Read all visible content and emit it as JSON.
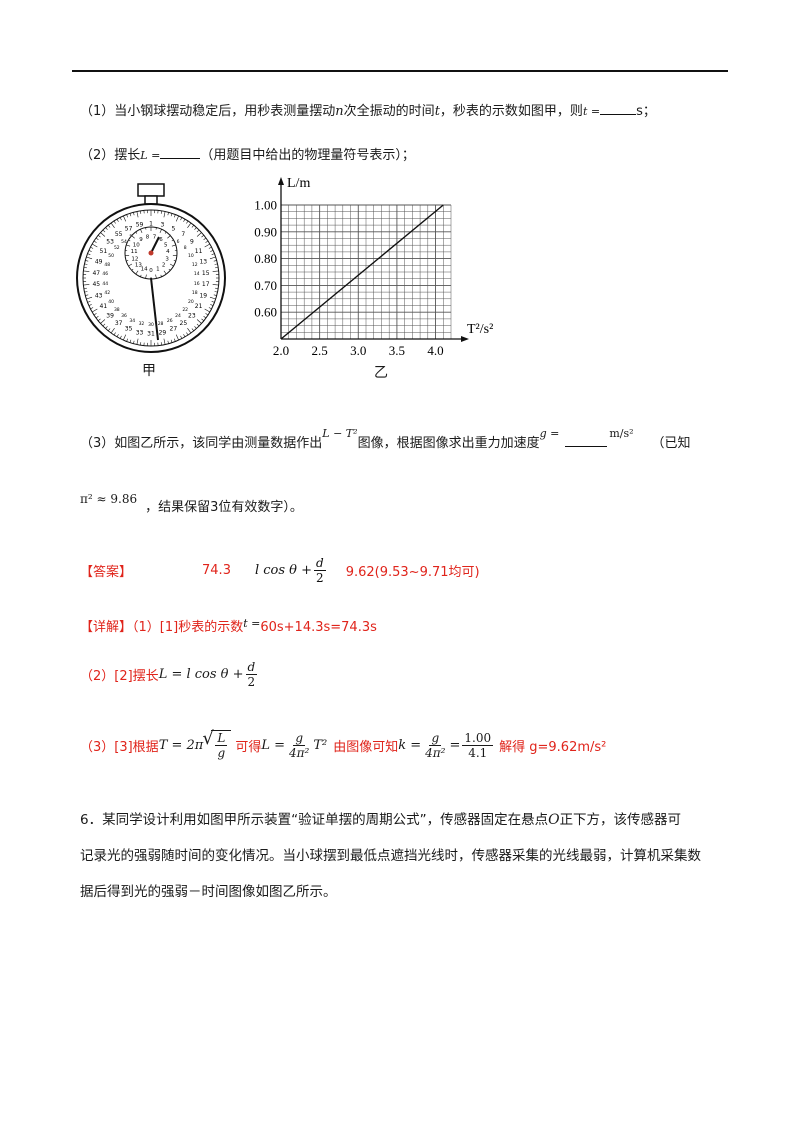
{
  "q1": {
    "num": "（1）",
    "text_a": "当小钢球摆动稳定后，用秒表测量摆动",
    "n": "n",
    "text_b": "次全振动的时间",
    "t": "t",
    "text_c": "，秒表的示数如图甲，则",
    "t_eq": "t =",
    "unit": "s；"
  },
  "q2": {
    "num": "（2）",
    "text_a": "摆长",
    "L_eq": "L =",
    "text_b": "（用题目中给出的物理量符号表示）；"
  },
  "figures": {
    "stopwatch_caption": "甲",
    "graph_caption": "乙",
    "stopwatch_outer_numbers": [
      "31",
      "33",
      "35",
      "37",
      "39",
      "41",
      "43",
      "45",
      "47",
      "49",
      "51",
      "53",
      "55",
      "57",
      "59",
      "1",
      "3",
      "5",
      "7",
      "9",
      "11",
      "13",
      "15",
      "17",
      "19",
      "21",
      "23",
      "25",
      "27",
      "29"
    ],
    "stopwatch_outer_numbers_inner_ring": [
      "2",
      "4",
      "6",
      "8",
      "10",
      "12",
      "14",
      "16",
      "18",
      "20",
      "22",
      "24",
      "26",
      "28",
      "30",
      "32",
      "34",
      "36",
      "38",
      "40",
      "42",
      "44",
      "46",
      "48",
      "50",
      "52",
      "54",
      "56",
      "58",
      "0"
    ],
    "stopwatch_inner_numbers": [
      "0",
      "1",
      "2",
      "3",
      "4",
      "5",
      "6",
      "7",
      "8",
      "9",
      "10",
      "11",
      "12",
      "13",
      "14"
    ]
  },
  "chart_data": {
    "type": "line",
    "xlabel": "T²/s²",
    "ylabel": "L/m",
    "x_ticks": [
      "2.0",
      "2.5",
      "3.0",
      "3.5",
      "4.0"
    ],
    "y_ticks": [
      "0.60",
      "0.70",
      "0.80",
      "0.90",
      "1.00"
    ],
    "xlim": [
      2.0,
      4.2
    ],
    "ylim": [
      0.5,
      1.0
    ],
    "series": [
      {
        "x": [
          2.0,
          4.1
        ],
        "y": [
          0.5,
          1.0
        ]
      }
    ],
    "grid": true
  },
  "q3": {
    "num": "（3）",
    "text_a": "如图乙所示，该同学由测量数据作出",
    "graph_label": "L − T²",
    "text_b": "图像，根据图像求出重力加速度",
    "g_eq": "g =",
    "unit": "m/s²",
    "text_c": "（已知",
    "pi_note": "π² ≈ 9.86",
    "text_d": "，结果保留3位有效数字）。"
  },
  "answer": {
    "label": "【答案】",
    "a1": "74.3",
    "a2_pre": "l cos θ +",
    "a2_num": "d",
    "a2_den": "2",
    "a3": "9.62(9.53~9.71均可)"
  },
  "detail": {
    "label": "【详解】",
    "p1_a": "（1）[1]秒表的示数",
    "p1_t": "t =",
    "p1_b": "60s+14.3s=74.3s",
    "p2_a": "（2）[2]摆长",
    "p2_eq": "L = l cos θ +",
    "p2_num": "d",
    "p2_den": "2",
    "p3_a": "（3）[3]根据",
    "p3_T": "T = 2π",
    "p3_sq_num": "L",
    "p3_sq_den": "g",
    "p3_b": "可得",
    "p3_L": "L =",
    "p3_g": "g",
    "p3_4pi": "4π²",
    "p3_T2": "T²",
    "p3_c": "由图像可知",
    "p3_k": "k =",
    "p3_100": "1.00",
    "p3_41": "4.1",
    "p3_d": "解得 g=9.62m/s²"
  },
  "q6": {
    "line1": "6．某同学设计利用如图甲所示装置“验证单摆的周期公式”，传感器固定在悬点",
    "O": "O",
    "line1b": "正下方，该传感器可",
    "line2": "记录光的强弱随时间的变化情况。当小球摆到最低点遮挡光线时，传感器采集的光线最弱，计算机采集数",
    "line3": "据后得到光的强弱－时间图像如图乙所示。"
  }
}
